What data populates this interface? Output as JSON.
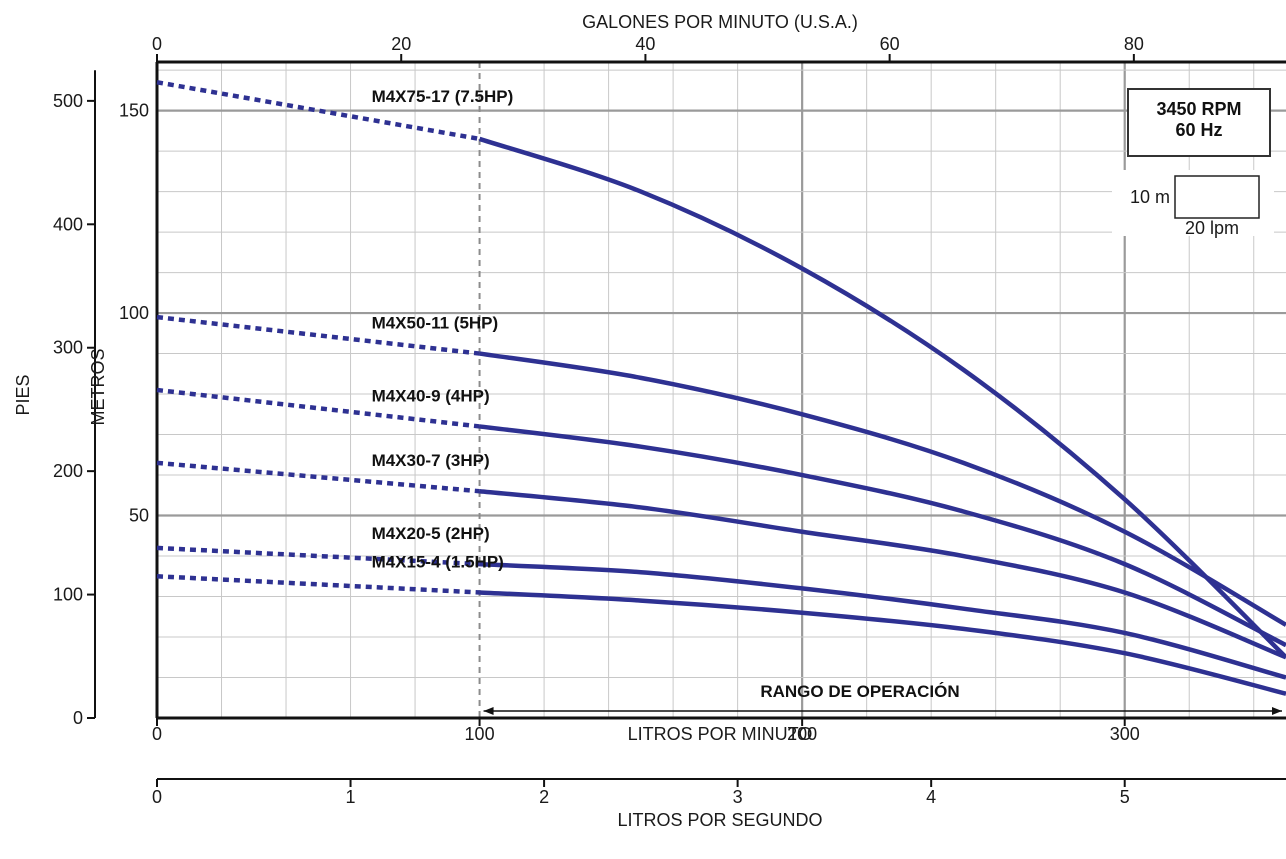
{
  "chart_data": {
    "type": "line",
    "colors": {
      "curve": "#2e3192",
      "grid_major": "#9a9a9a",
      "grid_minor": "#c8c8c8",
      "axis": "#111111"
    },
    "x": {
      "label": "LITROS POR MINUTO",
      "range": [
        0,
        350
      ],
      "ticks": [
        0,
        100,
        200,
        300
      ]
    },
    "x_top": {
      "label": "GALONES POR MINUTO (U.S.A.)",
      "ticks": [
        0,
        20,
        40,
        60,
        80
      ]
    },
    "x_bottom2": {
      "label": "LITROS POR SEGUNDO",
      "ticks": [
        0,
        1,
        2,
        3,
        4,
        5
      ]
    },
    "y": {
      "label": "METROS",
      "range": [
        0,
        162
      ],
      "ticks": [
        50,
        100,
        150
      ]
    },
    "y_left": {
      "label": "PIES",
      "ticks": [
        0,
        100,
        200,
        300,
        400,
        500
      ]
    },
    "info_box": {
      "line1": "3450 RPM",
      "line2": "60 Hz"
    },
    "scale_box": {
      "height_label": "10 m",
      "width_label": "20 lpm"
    },
    "operating_range": {
      "label": "RANGO DE OPERACIÓN",
      "from": 100,
      "to": 350
    },
    "min_flow_line": 100,
    "series": [
      {
        "name": "M4X75-17 (7.5HP)",
        "x": [
          0,
          100,
          150,
          200,
          250,
          300,
          350
        ],
        "y": [
          157,
          143,
          130,
          111,
          86,
          54,
          15
        ]
      },
      {
        "name": "M4X50-11 (5HP)",
        "x": [
          0,
          100,
          150,
          200,
          250,
          300,
          350
        ],
        "y": [
          99,
          90,
          84,
          75,
          63,
          46,
          23
        ]
      },
      {
        "name": "M4X40-9 (4HP)",
        "x": [
          0,
          100,
          150,
          200,
          250,
          300,
          350
        ],
        "y": [
          81,
          72,
          67,
          60,
          51,
          38,
          18
        ]
      },
      {
        "name": "M4X30-7 (3HP)",
        "x": [
          0,
          100,
          150,
          200,
          250,
          300,
          350
        ],
        "y": [
          63,
          56,
          52,
          46,
          40,
          31,
          15
        ]
      },
      {
        "name": "M4X20-5 (2HP)",
        "x": [
          0,
          100,
          150,
          200,
          250,
          300,
          350
        ],
        "y": [
          42,
          38,
          36,
          32,
          27,
          21,
          10
        ]
      },
      {
        "name": "M4X15-4 (1.5HP)",
        "x": [
          0,
          100,
          150,
          200,
          250,
          300,
          350
        ],
        "y": [
          35,
          31,
          29,
          26,
          22,
          16,
          6
        ]
      }
    ],
    "label_positions_hint": "labels placed just above dashed/solid transition"
  }
}
